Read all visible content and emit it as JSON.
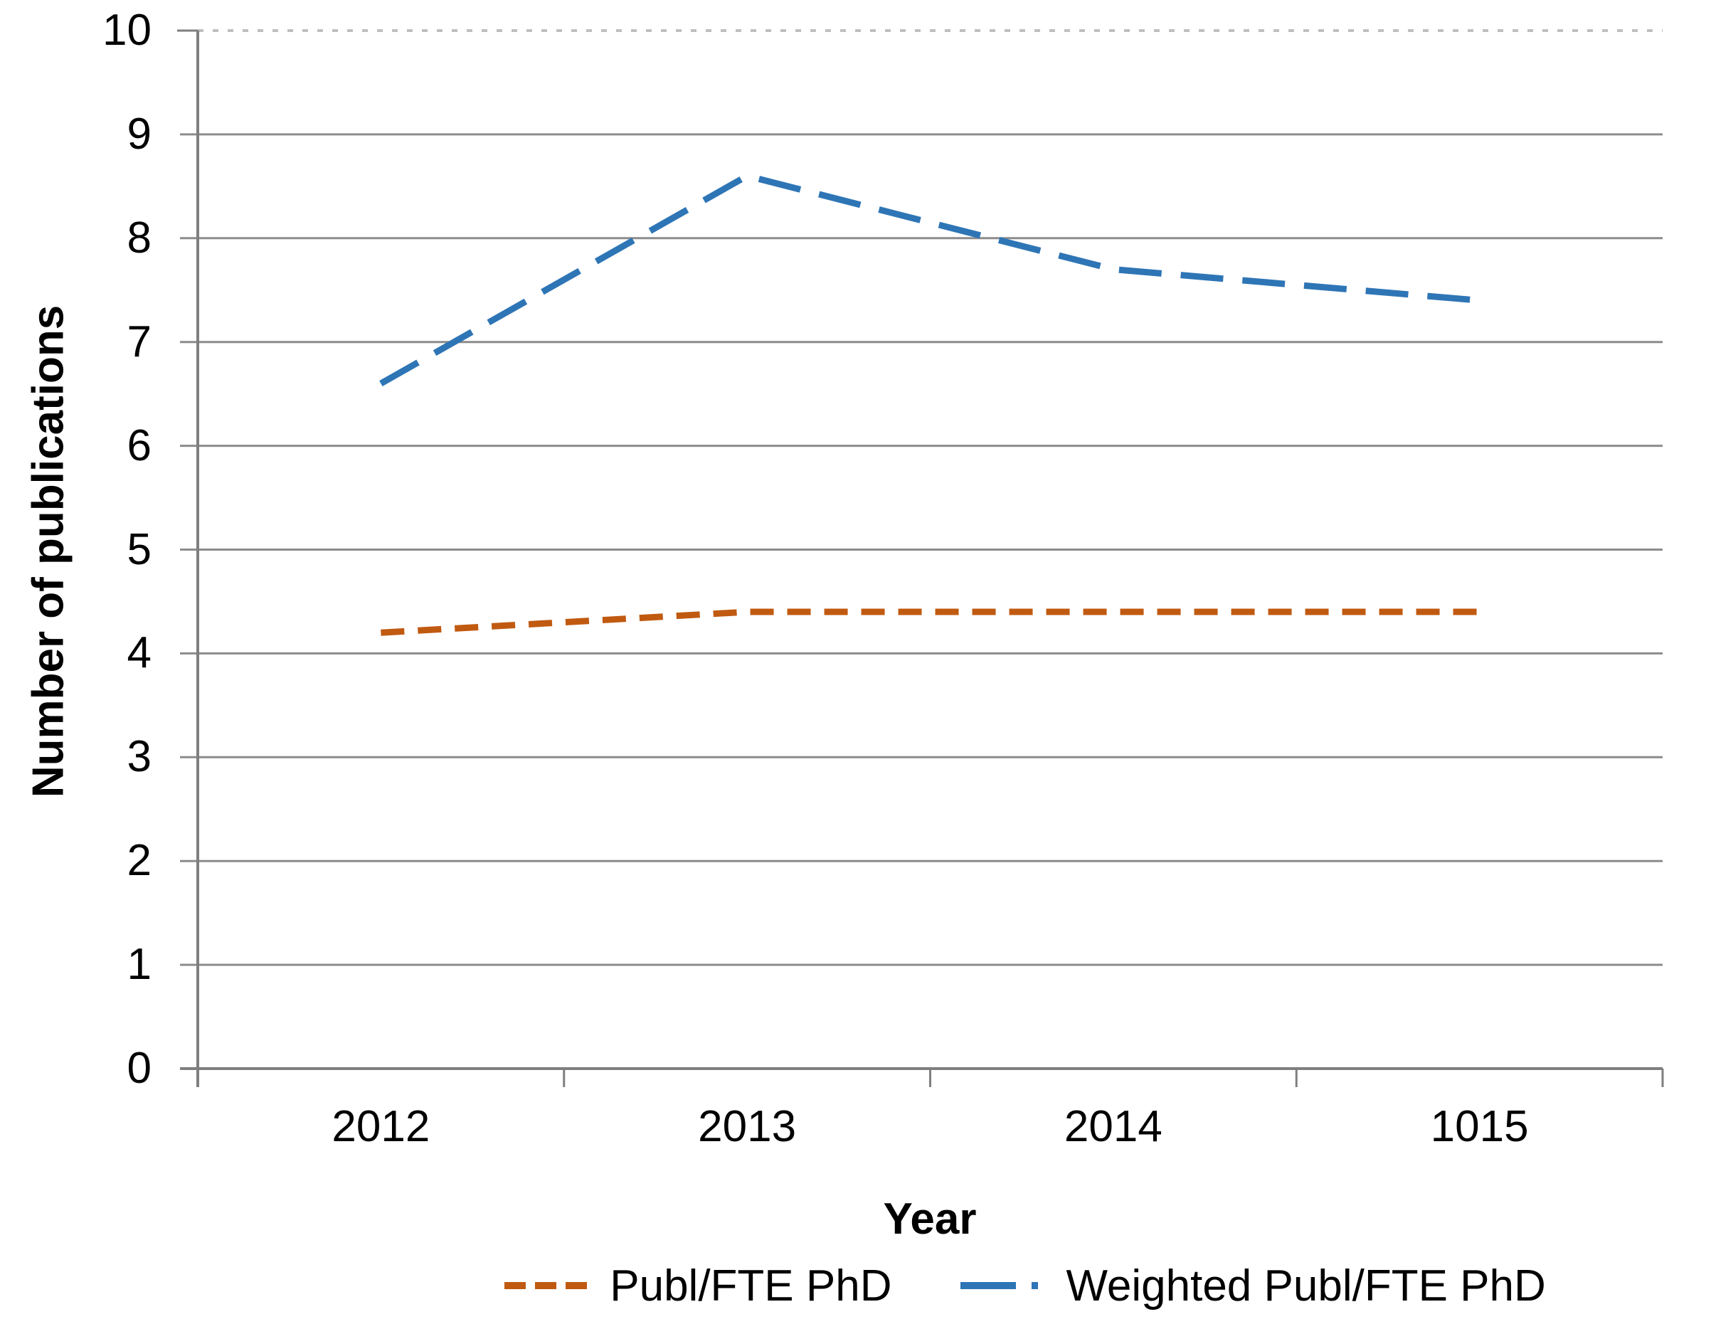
{
  "chart_data": {
    "type": "line",
    "title": "",
    "x_categories": [
      "2012",
      "2013",
      "2014",
      "1015"
    ],
    "xlabel": "Year",
    "ylabel": "Number of publications",
    "ylim": [
      0,
      10
    ],
    "yticks": [
      0,
      1,
      2,
      3,
      4,
      5,
      6,
      7,
      8,
      9,
      10
    ],
    "grid": "horizontal gridlines at each integer value; topmost gridline (10) is dotted",
    "legend_position": "bottom-center",
    "series": [
      {
        "name": "Publ/FTE PhD",
        "values": [
          4.2,
          4.4,
          4.4,
          4.4
        ],
        "color": "#C05A11",
        "line_style": "short-dash"
      },
      {
        "name": "Weighted Publ/FTE PhD",
        "values": [
          6.6,
          8.6,
          7.7,
          7.4
        ],
        "color": "#2E75B6",
        "line_style": "long-dash"
      }
    ]
  },
  "colors": {
    "background": "#FFFFFF",
    "gridline": "#8C8C8C",
    "gridline_top_dotted": "#BFBFBF",
    "axis": "#7F7F7F",
    "text": "#000000"
  }
}
